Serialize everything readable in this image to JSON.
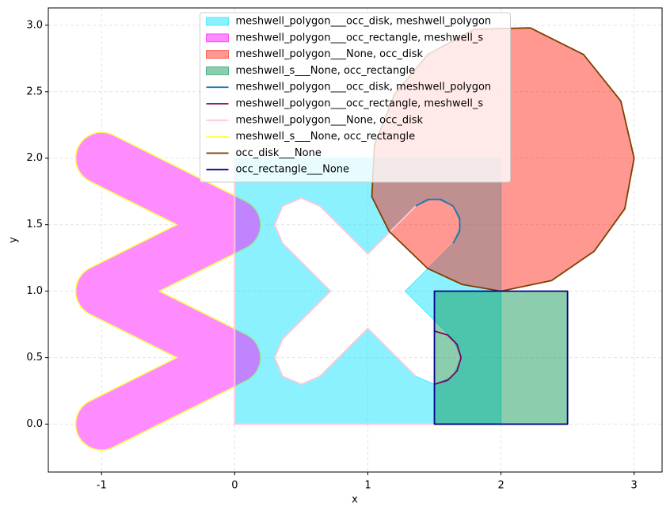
{
  "chart_data": {
    "type": "mesh",
    "x_label": "x",
    "y_label": "y",
    "xlim": [
      -1.4,
      3.21
    ],
    "ylim": [
      -0.36,
      3.13
    ],
    "xticks": [
      -1,
      0,
      1,
      2,
      3
    ],
    "yticks": [
      {
        "value": 0,
        "label": "0.0"
      },
      {
        "value": 0.5,
        "label": "0.5"
      },
      {
        "value": 1,
        "label": "1.0"
      },
      {
        "value": 1.5,
        "label": "1.5"
      },
      {
        "value": 2,
        "label": "2.0"
      },
      {
        "value": 2.5,
        "label": "2.5"
      },
      {
        "value": 3,
        "label": "3.0"
      }
    ],
    "grid": true,
    "legend": "upper center",
    "alpha": 0.45,
    "series": [
      {
        "name": "meshwell_polygon___occ_disk, meshwell_polygon",
        "kind": "patch",
        "color": "#00e0ff",
        "x": [
          0,
          2,
          2,
          0,
          null,
          0.72,
          0.36,
          0.3,
          0.36,
          0.5,
          0.64,
          1,
          1.36,
          1.5,
          1.64,
          1.7,
          1.64,
          1.28,
          1.64,
          1.7,
          1.64,
          1.5,
          1.36,
          1,
          0.64,
          0.5,
          0.36,
          0.3,
          0.36
        ],
        "y": [
          0,
          0,
          2,
          2,
          null,
          1,
          1.36,
          1.5,
          1.64,
          1.7,
          1.64,
          1.28,
          1.64,
          1.7,
          1.64,
          1.5,
          1.36,
          1,
          0.64,
          0.5,
          0.36,
          0.3,
          0.36,
          0.72,
          0.36,
          0.3,
          0.36,
          0.5,
          0.64
        ]
      },
      {
        "name": "meshwell_polygon___occ_rectangle, meshwell_s",
        "kind": "band",
        "color": "#ff00ff",
        "width": 0.38,
        "x": [
          -1,
          0,
          -1,
          0,
          -1
        ],
        "y": [
          2,
          1.5,
          1,
          0.5,
          0
        ]
      },
      {
        "name": "meshwell_polygon___None, occ_disk",
        "kind": "patch",
        "color": "#ff1a0a",
        "x": [
          2.22,
          2.62,
          2.9,
          3.0,
          2.93,
          2.7,
          2.38,
          2.0,
          1.71,
          1.45,
          1.16,
          1.03,
          1.05,
          1.2,
          1.45,
          1.8
        ],
        "y": [
          2.98,
          2.78,
          2.43,
          2.0,
          1.62,
          1.3,
          1.08,
          1.0,
          1.05,
          1.17,
          1.45,
          1.71,
          2.1,
          2.48,
          2.78,
          2.97
        ]
      },
      {
        "name": "meshwell_s___None, occ_rectangle",
        "kind": "patch",
        "color": "#00904a",
        "x": [
          1.5,
          2.5,
          2.5,
          1.5
        ],
        "y": [
          0,
          0,
          1,
          1
        ]
      },
      {
        "name": "meshwell_polygon___occ_disk, meshwell_polygon",
        "kind": "line",
        "color": "#1f77b4",
        "x": [
          1.36,
          1.45,
          1.55,
          1.64,
          1.69,
          1.69,
          1.64
        ],
        "y": [
          1.64,
          1.69,
          1.69,
          1.64,
          1.55,
          1.45,
          1.36
        ]
      },
      {
        "name": "meshwell_polygon___occ_rectangle, meshwell_s",
        "kind": "line",
        "color": "#800060",
        "x": [
          1.5,
          1.6,
          1.67,
          1.7,
          1.67,
          1.6,
          1.5
        ],
        "y": [
          0.7,
          0.67,
          0.6,
          0.5,
          0.4,
          0.33,
          0.3
        ]
      },
      {
        "name": "meshwell_polygon___None, occ_disk",
        "kind": "line",
        "color": "#ffc8d8",
        "x": [
          1.5,
          0,
          0,
          null,
          0.72,
          0.36,
          0.3,
          0.36,
          0.5,
          0.64,
          1,
          1.36,
          null,
          1.28,
          null,
          1.36,
          1,
          0.64,
          0.5,
          0.36,
          0.3,
          0.36,
          0.72
        ],
        "y": [
          0,
          0,
          2,
          null,
          1,
          1.36,
          1.5,
          1.64,
          1.7,
          1.64,
          1.28,
          1.64,
          null,
          1,
          null,
          0.36,
          0.72,
          0.36,
          0.3,
          0.36,
          0.5,
          0.64,
          1
        ]
      },
      {
        "name": "meshwell_s___None, occ_rectangle",
        "kind": "outline",
        "color": "#ffff40",
        "width": 0.38,
        "x": [
          -1,
          0,
          -1,
          0,
          -1
        ],
        "y": [
          2,
          1.5,
          1,
          0.5,
          0
        ]
      },
      {
        "name": "occ_disk___None",
        "kind": "line",
        "color": "#7f3f00",
        "closed": true,
        "x": [
          2.22,
          2.62,
          2.9,
          3.0,
          2.93,
          2.7,
          2.38,
          2.0,
          1.71,
          1.45,
          1.16,
          1.03,
          1.05,
          1.2,
          1.45,
          1.8
        ],
        "y": [
          2.98,
          2.78,
          2.43,
          2.0,
          1.62,
          1.3,
          1.08,
          1.0,
          1.05,
          1.17,
          1.45,
          1.71,
          2.1,
          2.48,
          2.78,
          2.97
        ]
      },
      {
        "name": "occ_rectangle___None",
        "kind": "line",
        "color": "#00008b",
        "closed": true,
        "x": [
          1.5,
          2.5,
          2.5,
          1.5
        ],
        "y": [
          0,
          0,
          1,
          1
        ]
      }
    ]
  }
}
